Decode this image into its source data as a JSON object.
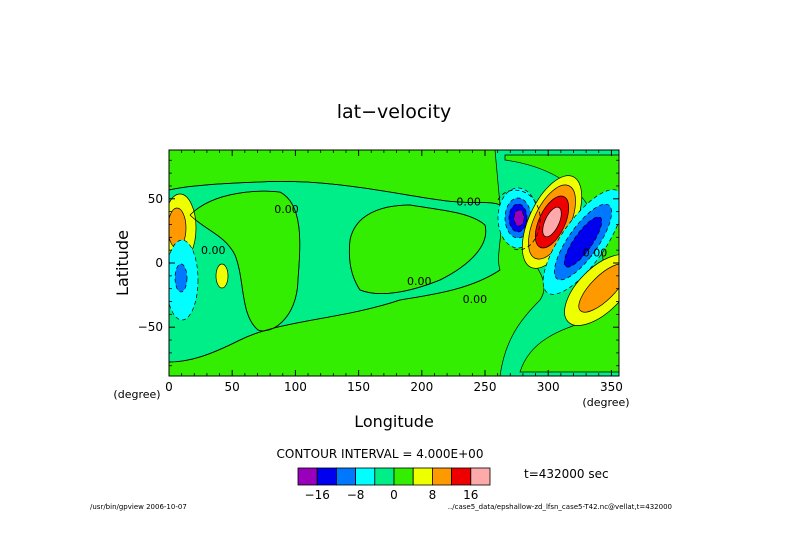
{
  "chart_data": {
    "type": "contour",
    "title": "lat−velocity",
    "xlabel": "Longitude",
    "ylabel": "Latitude",
    "x_unit": "(degree)",
    "y_unit": "(degree)",
    "xlim": [
      0,
      356
    ],
    "ylim": [
      -88,
      88
    ],
    "x_ticks": [
      0,
      50,
      100,
      150,
      200,
      250,
      300,
      350
    ],
    "y_ticks": [
      50,
      0,
      -50
    ],
    "y_tick_labels": [
      "50",
      "0",
      "−50"
    ],
    "contour_labels": [
      {
        "text": "0.00",
        "lon": 93,
        "lat": 42
      },
      {
        "text": "0.00",
        "lon": 35,
        "lat": 10
      },
      {
        "text": "0.00",
        "lon": 237,
        "lat": 48
      },
      {
        "text": "0.00",
        "lon": 198,
        "lat": -14
      },
      {
        "text": "0.00",
        "lon": 242,
        "lat": -28
      },
      {
        "text": "0.00",
        "lon": 337,
        "lat": 8
      }
    ],
    "contour_interval_text": "CONTOUR INTERVAL = 4.000E+00",
    "colorbar": {
      "levels": [
        -16,
        -8,
        0,
        8,
        16
      ],
      "level_labels": [
        "−16",
        "−8",
        "0",
        "8",
        "16"
      ],
      "colors": [
        "#9900bb",
        "#0000ee",
        "#0077ff",
        "#00ffff",
        "#00ee88",
        "#33ee00",
        "#eeff00",
        "#ff9900",
        "#ee0000",
        "#ffaaaa"
      ]
    },
    "time_label": "t=432000 sec",
    "field_colors": {
      "background": "#33ee00",
      "zero_band": "#00ee88",
      "neg_low": "#00ffff",
      "neg_mid": "#0077ff",
      "neg_high": "#0000ee",
      "neg_max": "#9900bb",
      "pos_low": "#eeff00",
      "pos_mid": "#ff9900",
      "pos_high": "#ee0000",
      "pos_max": "#ffaaaa"
    }
  },
  "footer": {
    "left": "/usr/bin/gpview  2006-10-07",
    "right": "../case5_data/epshallow-zd_lfsn_case5-T42.nc@vellat,t=432000"
  }
}
